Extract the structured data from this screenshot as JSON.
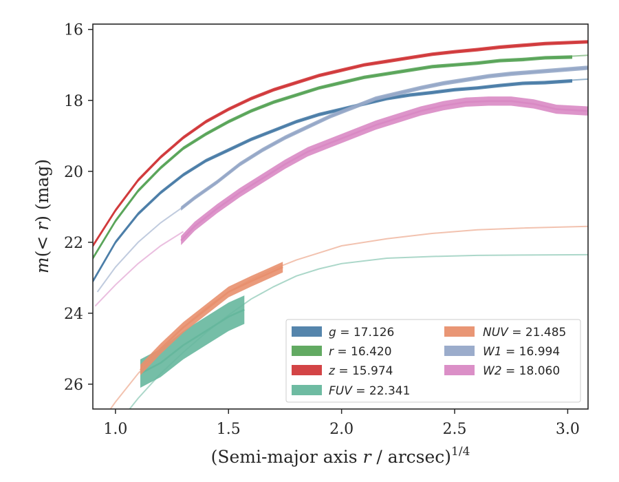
{
  "chart_data": {
    "type": "line",
    "xlabel_main": "(Semi-major axis ",
    "xlabel_var": "r",
    "xlabel_rest": " / arcsec)",
    "xlabel_exp": "1/4",
    "ylabel_pre": "m",
    "ylabel_mid": "(< ",
    "ylabel_var": "r",
    "ylabel_post": ") (mag)",
    "xlim": [
      0.9,
      3.09
    ],
    "ylim": [
      26.7,
      15.85
    ],
    "xticks": [
      1.0,
      1.5,
      2.0,
      2.5,
      3.0
    ],
    "xtick_labels": [
      "1.0",
      "1.5",
      "2.0",
      "2.5",
      "3.0"
    ],
    "yticks": [
      16,
      18,
      20,
      22,
      24,
      26
    ],
    "ytick_labels": [
      "16",
      "18",
      "20",
      "22",
      "24",
      "26"
    ],
    "legend_position": "lower-right",
    "series": [
      {
        "id": "g",
        "band": "g",
        "value": "= 17.126",
        "color": "#4c7ea8",
        "band_x": [
          0.9,
          1.0,
          1.1,
          1.2,
          1.3,
          1.4,
          1.5,
          1.6,
          1.7,
          1.8,
          1.9,
          2.0,
          2.1,
          2.2,
          2.3,
          2.4,
          2.5,
          2.6,
          2.7,
          2.8,
          2.9,
          3.02
        ],
        "band_y": [
          23.1,
          22.0,
          21.2,
          20.6,
          20.1,
          19.7,
          19.4,
          19.1,
          18.85,
          18.6,
          18.4,
          18.25,
          18.1,
          17.95,
          17.85,
          17.78,
          17.7,
          17.65,
          17.58,
          17.52,
          17.5,
          17.45
        ],
        "band_err": 0.05,
        "model_x": [
          2.9,
          3.09
        ],
        "model_y": [
          17.48,
          17.4
        ]
      },
      {
        "id": "r",
        "band": "r",
        "value": "= 16.420",
        "color": "#5aa55a",
        "band_x": [
          0.9,
          1.0,
          1.1,
          1.2,
          1.3,
          1.4,
          1.5,
          1.6,
          1.7,
          1.8,
          1.9,
          2.0,
          2.1,
          2.2,
          2.3,
          2.4,
          2.5,
          2.6,
          2.7,
          2.8,
          2.9,
          3.02
        ],
        "band_y": [
          22.45,
          21.4,
          20.55,
          19.9,
          19.35,
          18.95,
          18.6,
          18.3,
          18.05,
          17.85,
          17.65,
          17.5,
          17.35,
          17.25,
          17.15,
          17.05,
          17.0,
          16.95,
          16.88,
          16.85,
          16.8,
          16.78
        ],
        "band_err": 0.05,
        "model_x": [
          2.9,
          3.09
        ],
        "model_y": [
          16.8,
          16.73
        ]
      },
      {
        "id": "z",
        "band": "z",
        "value": "= 15.974",
        "color": "#d13a3c",
        "band_x": [
          0.9,
          1.0,
          1.1,
          1.2,
          1.3,
          1.4,
          1.5,
          1.6,
          1.7,
          1.8,
          1.9,
          2.0,
          2.1,
          2.2,
          2.3,
          2.4,
          2.5,
          2.6,
          2.7,
          2.8,
          2.9,
          3.09
        ],
        "band_y": [
          22.1,
          21.1,
          20.25,
          19.6,
          19.05,
          18.6,
          18.25,
          17.95,
          17.7,
          17.5,
          17.3,
          17.15,
          17.0,
          16.9,
          16.8,
          16.7,
          16.63,
          16.57,
          16.5,
          16.45,
          16.4,
          16.35
        ],
        "band_err": 0.05,
        "model_x": [],
        "model_y": []
      },
      {
        "id": "fuv",
        "band": "FUV",
        "value": "= 22.341",
        "color": "#66b79d",
        "band_x": [
          1.11,
          1.2,
          1.3,
          1.4,
          1.5,
          1.57
        ],
        "band_y": [
          25.7,
          25.4,
          24.9,
          24.5,
          24.1,
          23.9
        ],
        "band_err": 0.4,
        "model_x": [
          0.9,
          1.0,
          1.1,
          1.2,
          1.3,
          1.4,
          1.5,
          1.6,
          1.7,
          1.8,
          1.9,
          2.0,
          2.2,
          2.4,
          2.6,
          2.8,
          3.09
        ],
        "model_y": [
          28.0,
          27.2,
          26.4,
          25.7,
          25.1,
          24.55,
          24.05,
          23.6,
          23.25,
          22.95,
          22.75,
          22.6,
          22.45,
          22.4,
          22.37,
          22.36,
          22.35
        ],
        "model_opacity": 0.55
      },
      {
        "id": "nuv",
        "band": "NUV",
        "value": "= 21.485",
        "color": "#e8906e",
        "band_x": [
          1.11,
          1.2,
          1.3,
          1.4,
          1.5,
          1.6,
          1.74
        ],
        "band_y": [
          25.6,
          25.0,
          24.4,
          23.9,
          23.4,
          23.1,
          22.7
        ],
        "band_err": 0.15,
        "model_x": [
          0.9,
          1.0,
          1.1,
          1.2,
          1.3,
          1.4,
          1.5,
          1.6,
          1.7,
          1.8,
          1.9,
          2.0,
          2.2,
          2.4,
          2.6,
          2.8,
          3.09
        ],
        "model_y": [
          27.4,
          26.5,
          25.7,
          25.0,
          24.4,
          23.85,
          23.4,
          23.05,
          22.75,
          22.5,
          22.3,
          22.1,
          21.9,
          21.75,
          21.65,
          21.6,
          21.55
        ],
        "model_opacity": 0.55
      },
      {
        "id": "w1",
        "band": "W1",
        "value": "= 16.994",
        "color": "#96a8c8",
        "band_x": [
          1.29,
          1.35,
          1.45,
          1.55,
          1.65,
          1.75,
          1.85,
          1.95,
          2.05,
          2.15,
          2.25,
          2.35,
          2.45,
          2.55,
          2.65,
          2.75,
          2.85,
          2.95,
          3.09
        ],
        "band_y": [
          21.05,
          20.75,
          20.3,
          19.8,
          19.4,
          19.05,
          18.75,
          18.45,
          18.2,
          17.95,
          17.8,
          17.65,
          17.52,
          17.42,
          17.32,
          17.25,
          17.2,
          17.15,
          17.08
        ],
        "band_err": 0.06,
        "model_x": [
          0.92,
          1.0,
          1.1,
          1.2,
          1.3
        ],
        "model_y": [
          23.4,
          22.7,
          22.0,
          21.45,
          21.0
        ],
        "model_opacity": 0.6
      },
      {
        "id": "w2",
        "band": "W2",
        "value": "= 18.060",
        "color": "#d989c4",
        "band_x": [
          1.29,
          1.35,
          1.45,
          1.55,
          1.65,
          1.75,
          1.85,
          1.95,
          2.05,
          2.15,
          2.25,
          2.35,
          2.45,
          2.55,
          2.65,
          2.75,
          2.85,
          2.95,
          3.09
        ],
        "band_y": [
          21.95,
          21.55,
          21.05,
          20.6,
          20.2,
          19.8,
          19.45,
          19.2,
          18.95,
          18.7,
          18.5,
          18.3,
          18.15,
          18.05,
          18.02,
          18.02,
          18.1,
          18.25,
          18.3
        ],
        "band_err": 0.13,
        "model_x": [
          0.91,
          1.0,
          1.1,
          1.2,
          1.3
        ],
        "model_y": [
          23.8,
          23.2,
          22.6,
          22.1,
          21.7
        ],
        "model_opacity": 0.55
      }
    ],
    "legend_order": [
      "g",
      "r",
      "z",
      "fuv",
      "nuv",
      "w1",
      "w2"
    ]
  }
}
